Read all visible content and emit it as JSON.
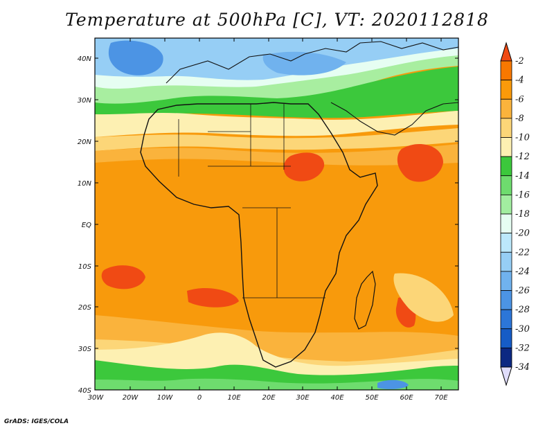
{
  "title": "Temperature at 500hPa [C], VT: 2020112818",
  "credit": "GrADS: IGES/COLA",
  "map": {
    "lat_labels": [
      "40N",
      "30N",
      "20N",
      "10N",
      "EQ",
      "10S",
      "20S",
      "30S",
      "40S"
    ],
    "lon_labels": [
      "30W",
      "20W",
      "10W",
      "0",
      "10E",
      "20E",
      "30E",
      "40E",
      "50E",
      "60E",
      "70E"
    ]
  },
  "colorbar": {
    "levels": [
      "-2",
      "-4",
      "-6",
      "-8",
      "-10",
      "-12",
      "-14",
      "-16",
      "-18",
      "-20",
      "-22",
      "-24",
      "-26",
      "-28",
      "-30",
      "-32",
      "-34"
    ],
    "colors": [
      "#f04a14",
      "#f87800",
      "#fa9a0a",
      "#fab33c",
      "#fcd678",
      "#fdf0b2",
      "#3cc83c",
      "#6edc6e",
      "#a2eea0",
      "#e6fef2",
      "#bce8fb",
      "#96cef5",
      "#70b2ee",
      "#4c94e4",
      "#2c76d8",
      "#165cc6",
      "#0c2882",
      "#0a1064",
      "#dcdcfc"
    ],
    "top_color": "#f04a14",
    "bottom_color": "#e0ddfb"
  }
}
